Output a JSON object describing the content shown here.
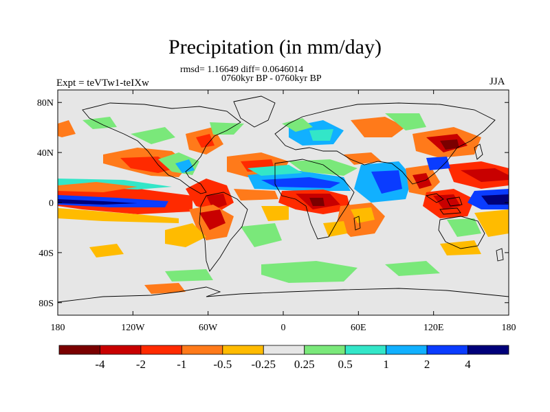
{
  "title": "Precipitation (in mm/day)",
  "stats_line": "rmsd= 1.16649 diff= 0.0646014",
  "period_line": "0760kyr BP - 0760kyr BP",
  "expt_label": "Expt = teVTw1-teIXw",
  "season_label": "JJA",
  "y_axis": {
    "labels": [
      "80N",
      "40N",
      "0",
      "40S",
      "80S"
    ],
    "values": [
      80,
      40,
      0,
      -40,
      -80
    ],
    "range": [
      -90,
      90
    ]
  },
  "x_axis": {
    "labels": [
      "180",
      "120W",
      "60W",
      "0",
      "60E",
      "120E",
      "180"
    ],
    "values": [
      -180,
      -120,
      -60,
      0,
      60,
      120,
      180
    ],
    "range": [
      -180,
      180
    ]
  },
  "colorbar": {
    "labels": [
      "-4",
      "-2",
      "-1",
      "-0.5",
      "-0.25",
      "0.25",
      "0.5",
      "1",
      "2",
      "4"
    ],
    "colors": [
      "#7a0000",
      "#c80000",
      "#ff2a00",
      "#ff7a1a",
      "#ffbb00",
      "#e6e6e6",
      "#7ae87a",
      "#33e6c8",
      "#11b0ff",
      "#0a3cff",
      "#00007a"
    ]
  },
  "colors": {
    "land_outline": "#000000",
    "background": "#e6e6e6"
  }
}
